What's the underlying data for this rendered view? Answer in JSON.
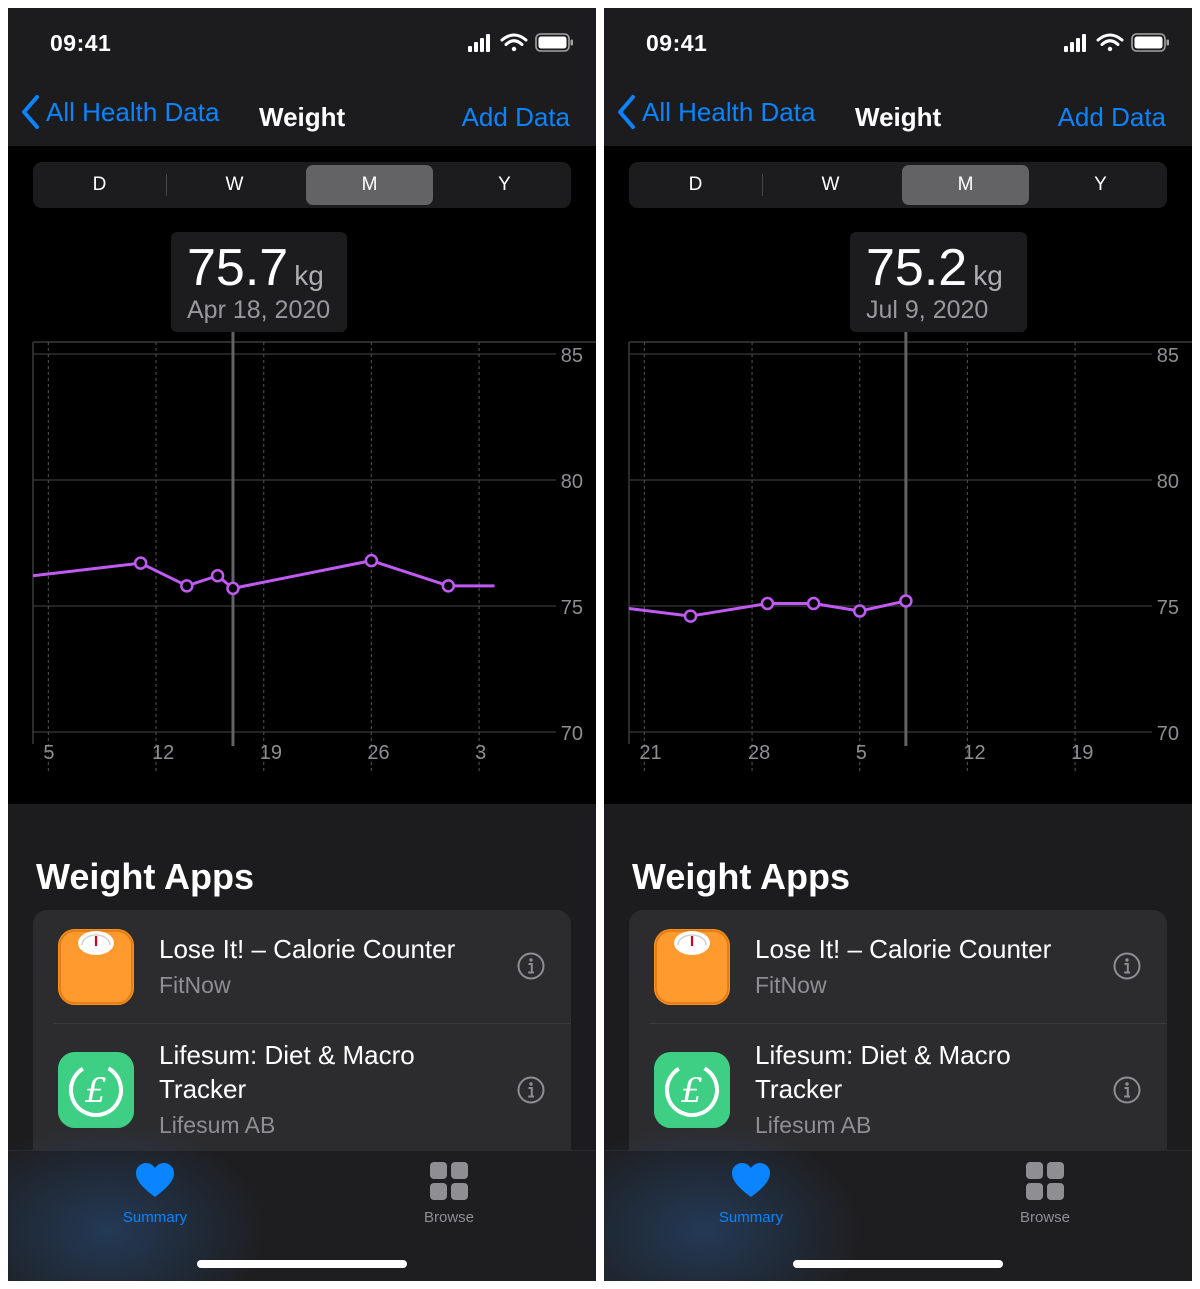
{
  "colors": {
    "accent": "#0a84ff",
    "line": "#bf5af2",
    "background": "#1c1c1e",
    "chart_background": "#000000",
    "card": "#2c2c2e",
    "lose_it_icon": "#ff9500",
    "lifesum_icon": "#34c579"
  },
  "screens": [
    {
      "status_bar": {
        "time": "09:41"
      },
      "nav": {
        "back_label": "All Health Data",
        "title": "Weight",
        "action_label": "Add Data"
      },
      "segments": [
        "D",
        "W",
        "M",
        "Y"
      ],
      "selected_segment": "M",
      "selection": {
        "value": "75.7",
        "unit": "kg",
        "date": "Apr 18, 2020"
      },
      "apps_heading": "Weight Apps",
      "apps": [
        {
          "name": "Lose It! – Calorie Counter",
          "developer": "FitNow",
          "icon": "scale-icon"
        },
        {
          "name": "Lifesum: Diet & Macro Tracker",
          "developer": "Lifesum AB",
          "icon": "lifesum-icon"
        }
      ],
      "tabs": [
        {
          "label": "Summary",
          "icon": "heart-icon",
          "selected": true
        },
        {
          "label": "Browse",
          "icon": "grid-icon",
          "selected": false
        }
      ]
    },
    {
      "status_bar": {
        "time": "09:41"
      },
      "nav": {
        "back_label": "All Health Data",
        "title": "Weight",
        "action_label": "Add Data"
      },
      "segments": [
        "D",
        "W",
        "M",
        "Y"
      ],
      "selected_segment": "M",
      "selection": {
        "value": "75.2",
        "unit": "kg",
        "date": "Jul 9, 2020"
      },
      "apps_heading": "Weight Apps",
      "apps": [
        {
          "name": "Lose It! – Calorie Counter",
          "developer": "FitNow",
          "icon": "scale-icon"
        },
        {
          "name": "Lifesum: Diet & Macro Tracker",
          "developer": "Lifesum AB",
          "icon": "lifesum-icon"
        }
      ],
      "tabs": [
        {
          "label": "Summary",
          "icon": "heart-icon",
          "selected": true
        },
        {
          "label": "Browse",
          "icon": "grid-icon",
          "selected": false
        }
      ]
    }
  ],
  "chart_data": [
    {
      "type": "line",
      "xlabel": "",
      "ylabel": "",
      "ylim": [
        70,
        85
      ],
      "y_ticks": [
        85,
        80,
        75,
        70
      ],
      "x_tick_labels": [
        "5",
        "12",
        "19",
        "26",
        "3"
      ],
      "x": [
        "2020-04-05",
        "2020-04-12",
        "2020-04-15",
        "2020-04-17",
        "2020-04-18",
        "2020-04-27",
        "2020-05-02",
        "2020-05-05"
      ],
      "series": [
        {
          "values": [
            76.2,
            76.7,
            75.8,
            76.2,
            75.7,
            76.8,
            75.8,
            75.8
          ],
          "markers": [
            false,
            true,
            true,
            true,
            true,
            true,
            true,
            false
          ]
        }
      ],
      "selected_x": "2020-04-18",
      "grid": true
    },
    {
      "type": "line",
      "xlabel": "",
      "ylabel": "",
      "ylim": [
        70,
        85
      ],
      "y_ticks": [
        85,
        80,
        75,
        70
      ],
      "x_tick_labels": [
        "21",
        "28",
        "5",
        "12",
        "19"
      ],
      "x": [
        "2020-06-21",
        "2020-06-25",
        "2020-06-30",
        "2020-07-03",
        "2020-07-06",
        "2020-07-09"
      ],
      "series": [
        {
          "values": [
            74.9,
            74.6,
            75.1,
            75.1,
            74.8,
            75.2
          ],
          "markers": [
            false,
            true,
            true,
            true,
            true,
            true
          ]
        }
      ],
      "selected_x": "2020-07-09",
      "grid": true
    }
  ]
}
